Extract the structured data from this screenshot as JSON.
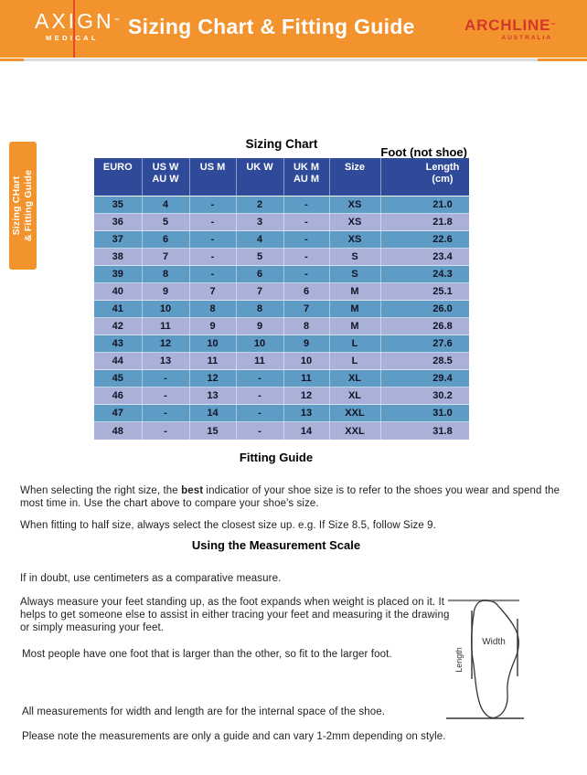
{
  "header": {
    "brand": {
      "name": "AXIGN",
      "sub": "MEDICAL",
      "tm": "™"
    },
    "title": "Sizing Chart & Fitting Guide",
    "partner": {
      "name": "ARCHLINE",
      "sub": "AUSTRALIA",
      "tm": "™"
    }
  },
  "side_tab": {
    "line1": "Sizing CHart",
    "line2": "& Fitting Guide"
  },
  "sizing_chart": {
    "title": "Sizing Chart",
    "foot_note": "Foot (not shoe)",
    "columns": [
      "EURO",
      "US W\nAU W",
      "US M",
      "UK W",
      "UK M\nAU M",
      "Size",
      "Length\n(cm)"
    ],
    "rows": [
      [
        "35",
        "4",
        "-",
        "2",
        "-",
        "XS",
        "21.0"
      ],
      [
        "36",
        "5",
        "-",
        "3",
        "-",
        "XS",
        "21.8"
      ],
      [
        "37",
        "6",
        "-",
        "4",
        "-",
        "XS",
        "22.6"
      ],
      [
        "38",
        "7",
        "-",
        "5",
        "-",
        "S",
        "23.4"
      ],
      [
        "39",
        "8",
        "-",
        "6",
        "-",
        "S",
        "24.3"
      ],
      [
        "40",
        "9",
        "7",
        "7",
        "6",
        "M",
        "25.1"
      ],
      [
        "41",
        "10",
        "8",
        "8",
        "7",
        "M",
        "26.0"
      ],
      [
        "42",
        "11",
        "9",
        "9",
        "8",
        "M",
        "26.8"
      ],
      [
        "43",
        "12",
        "10",
        "10",
        "9",
        "L",
        "27.6"
      ],
      [
        "44",
        "13",
        "11",
        "11",
        "10",
        "L",
        "28.5"
      ],
      [
        "45",
        "-",
        "12",
        "-",
        "11",
        "XL",
        "29.4"
      ],
      [
        "46",
        "-",
        "13",
        "-",
        "12",
        "XL",
        "30.2"
      ],
      [
        "47",
        "-",
        "14",
        "-",
        "13",
        "XXL",
        "31.0"
      ],
      [
        "48",
        "-",
        "15",
        "-",
        "14",
        "XXL",
        "31.8"
      ]
    ]
  },
  "fitting_guide": {
    "title": "Fitting Guide",
    "p1_before": "When selecting the right size, the ",
    "p1_bold": "best",
    "p1_after": " indicatior of your shoe size is to refer to the shoes you wear and spend the most time in. Use the chart above to compare your shoe's size.",
    "p2": "When fitting to half size, always select the closest size up. e.g. If Size 8.5, follow Size 9."
  },
  "measurement_scale": {
    "title": "Using the Measurement Scale",
    "p1": "If in doubt, use centimeters as a comparative measure.",
    "p2": "Always measure your feet standing up, as the foot expands when weight is placed on it. It helps to get someone else to assist in either tracing your feet and measuring it the drawing or simply measuring your feet.",
    "p3": "Most people have one foot that is larger than the other, so fit to the larger foot.",
    "p4": "All measurements for width and length are for the internal space of the shoe.",
    "p5": "Please note the measurements are only a guide and can vary 1-2mm depending on style."
  },
  "diagram": {
    "width_label": "Width",
    "length_label": "Length"
  },
  "colors": {
    "header_orange": "#F3932E",
    "brand_red": "#D5362B",
    "table_header_blue": "#2F4A99",
    "row_steel_blue": "#5E9CC5",
    "row_periwinkle": "#A9B1D9"
  }
}
